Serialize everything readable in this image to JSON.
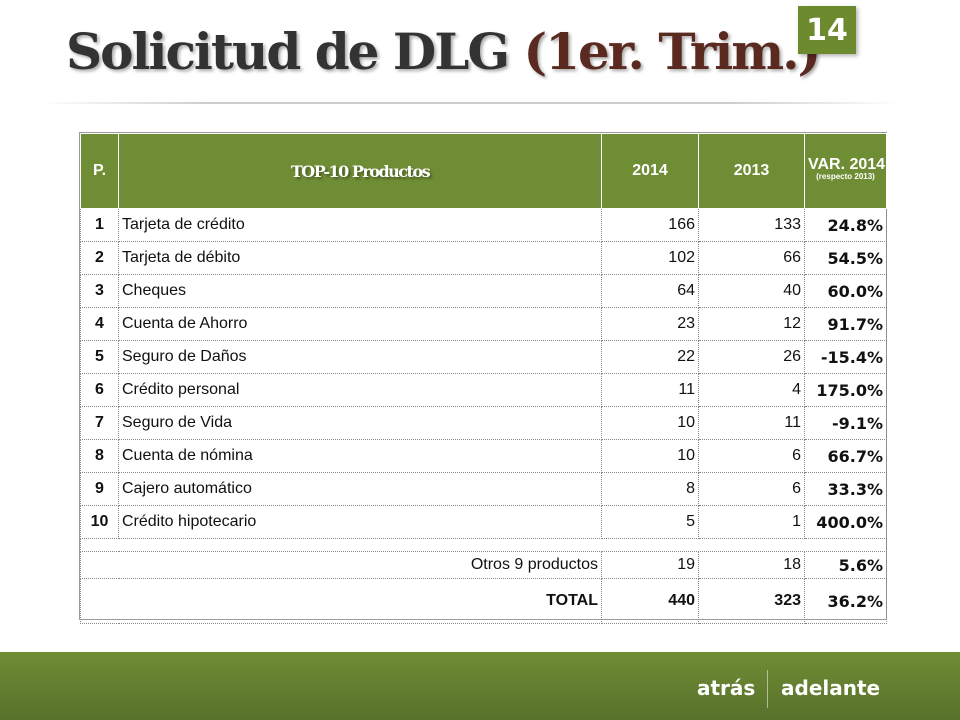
{
  "slide": {
    "title_main": "Solicitud de DLG",
    "title_sub": "(1er. Trim.)",
    "page_number": "14"
  },
  "table": {
    "header": {
      "p": "P.",
      "title": "TOP-10 Productos",
      "col_2014": "2014",
      "col_2013": "2013",
      "var_label": "VAR. 2014",
      "var_sub": "(respecto 2013)"
    },
    "rows": [
      {
        "rank": "1",
        "product": "Tarjeta de crédito",
        "v2014": "166",
        "v2013": "133",
        "var": "24.8%"
      },
      {
        "rank": "2",
        "product": "Tarjeta de débito",
        "v2014": "102",
        "v2013": "66",
        "var": "54.5%"
      },
      {
        "rank": "3",
        "product": "Cheques",
        "v2014": "64",
        "v2013": "40",
        "var": "60.0%"
      },
      {
        "rank": "4",
        "product": "Cuenta de Ahorro",
        "v2014": "23",
        "v2013": "12",
        "var": "91.7%"
      },
      {
        "rank": "5",
        "product": "Seguro de Daños",
        "v2014": "22",
        "v2013": "26",
        "var": "-15.4%"
      },
      {
        "rank": "6",
        "product": "Crédito personal",
        "v2014": "11",
        "v2013": "4",
        "var": "175.0%"
      },
      {
        "rank": "7",
        "product": "Seguro de Vida",
        "v2014": "10",
        "v2013": "11",
        "var": "-9.1%"
      },
      {
        "rank": "8",
        "product": "Cuenta de nómina",
        "v2014": "10",
        "v2013": "6",
        "var": "66.7%"
      },
      {
        "rank": "9",
        "product": "Cajero automático",
        "v2014": "8",
        "v2013": "6",
        "var": "33.3%"
      },
      {
        "rank": "10",
        "product": "Crédito hipotecario",
        "v2014": "5",
        "v2013": "1",
        "var": "400.0%"
      }
    ],
    "otros": {
      "label": "Otros 9 productos",
      "v2014": "19",
      "v2013": "18",
      "var": "5.6%"
    },
    "total": {
      "label": "TOTAL",
      "v2014": "440",
      "v2013": "323",
      "var": "36.2%"
    }
  },
  "colors": {
    "accent": "#6f8d35",
    "positive": "#2e9e3e",
    "negative": "#d12020"
  },
  "footer": {
    "back_label": "atrás",
    "next_label": "adelante"
  }
}
